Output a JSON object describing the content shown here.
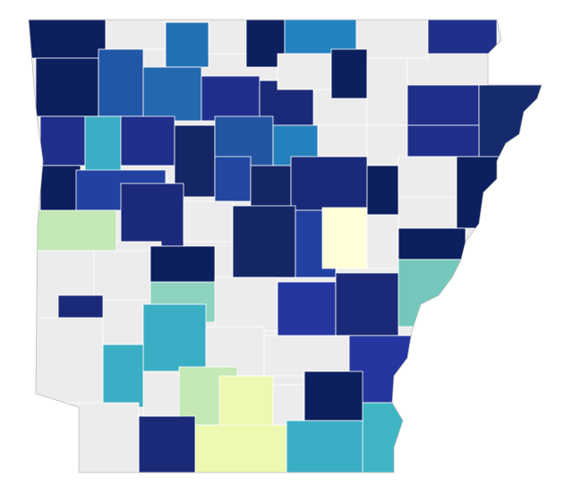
{
  "map": {
    "region_fills": [
      "#0c1f5e",
      "#ececec",
      "#2370b5",
      "#ececec",
      "#0c1f5e",
      "#2383c0",
      "#ececec",
      "#1f2f8a",
      "#0c1f5e",
      "#2157a6",
      "#2468b0",
      "#212f8c",
      "#1b2a78",
      "#ececec",
      "#0c1f5e",
      "#ececec",
      "#1f2f8a",
      "#162a6e",
      "#1f2f8a",
      "#3aaec4",
      "#1f2f8a",
      "#142666",
      "#2355a3",
      "#2581bd",
      "#ececec",
      "#1f2f8a",
      "#0c1f5e",
      "#2241a0",
      "#1b2a7a",
      "#2147a0",
      "#142666",
      "#1b2a78",
      "#0c1f5e",
      "#ececec",
      "#0c1f5e",
      "#c4e8b6",
      "#ececec",
      "#ececec",
      "#142666",
      "#2241a0",
      "#ffffd9",
      "#ececec",
      "#0c1f5e",
      "#74c8bb",
      "#ececec",
      "#ececec",
      "#0c1f5e",
      "#8dd3c0",
      "#ececec",
      "#2636a0",
      "#1b2a78",
      "#1b2a78",
      "#3aaec4",
      "#3aaec4",
      "#ececec",
      "#ececec",
      "#ececec",
      "#2636a0",
      "#c4e8b6",
      "#edf8b1",
      "#ececec",
      "#0c1f5e",
      "#3fb5c4",
      "#3aaec4",
      "#edf8b1",
      "#1b2a78",
      "#ececec",
      "#ececec"
    ]
  }
}
